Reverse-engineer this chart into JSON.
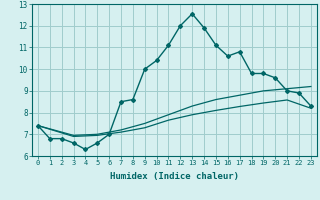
{
  "xlabel": "Humidex (Indice chaleur)",
  "ylabel": "",
  "xlim": [
    -0.5,
    23.5
  ],
  "ylim": [
    6,
    13
  ],
  "bg_color": "#d6f0f0",
  "grid_color": "#a0cccc",
  "line_color": "#006666",
  "curves": [
    {
      "x": [
        0,
        1,
        2,
        3,
        4,
        5,
        6,
        7,
        8,
        9,
        10,
        11,
        12,
        13,
        14,
        15,
        16,
        17,
        18,
        19,
        20,
        21,
        22,
        23
      ],
      "y": [
        7.4,
        6.8,
        6.8,
        6.6,
        6.3,
        6.6,
        7.0,
        8.5,
        8.6,
        10.0,
        10.4,
        11.1,
        12.0,
        12.55,
        11.9,
        11.1,
        10.6,
        10.8,
        9.8,
        9.8,
        9.6,
        9.0,
        8.9,
        8.3
      ],
      "marker": "D",
      "style": "-",
      "lw": 1.0,
      "ms": 2.0
    },
    {
      "x": [
        0,
        3,
        5,
        7,
        9,
        11,
        13,
        15,
        17,
        19,
        21,
        23
      ],
      "y": [
        7.4,
        6.95,
        7.0,
        7.2,
        7.5,
        7.9,
        8.3,
        8.6,
        8.8,
        9.0,
        9.1,
        9.2
      ],
      "marker": null,
      "style": "-",
      "lw": 0.9,
      "ms": 0
    },
    {
      "x": [
        0,
        3,
        5,
        7,
        9,
        11,
        13,
        15,
        17,
        19,
        21,
        23
      ],
      "y": [
        7.4,
        6.9,
        6.95,
        7.1,
        7.3,
        7.65,
        7.9,
        8.1,
        8.28,
        8.44,
        8.58,
        8.2
      ],
      "marker": null,
      "style": "-",
      "lw": 0.9,
      "ms": 0
    }
  ]
}
